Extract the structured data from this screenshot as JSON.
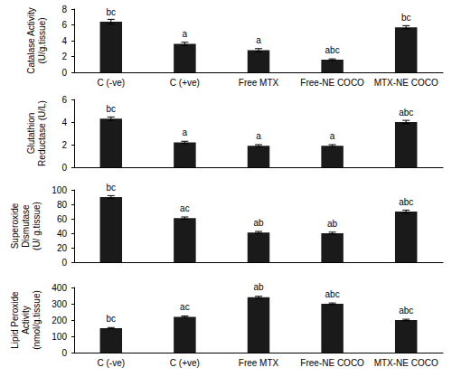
{
  "chart_data": [
    {
      "type": "bar",
      "y_label": "Catalase Activity\n(U/g.tissue)",
      "categories": [
        "C (-ve)",
        "C (+ve)",
        "Free MTX",
        "Free-NE COCO",
        "MTX-NE COCO"
      ],
      "values": [
        6.4,
        3.6,
        2.8,
        1.6,
        5.7
      ],
      "errors": [
        0.3,
        0.2,
        0.2,
        0.1,
        0.2
      ],
      "annotations": [
        "bc",
        "a",
        "a",
        "abc",
        "bc"
      ],
      "color": "#1a1a1a",
      "ylim": [
        0,
        8
      ],
      "yticks": [
        0,
        2,
        4,
        6,
        8
      ],
      "grid": false
    },
    {
      "type": "bar",
      "y_label": "Glutathion\nReductase (U/L)",
      "categories": [
        "C (-ve)",
        "C (+ve)",
        "Free MTX",
        "Free-NE COCO",
        "MTX-NE COCO"
      ],
      "values": [
        4.3,
        2.2,
        1.9,
        1.9,
        4.0
      ],
      "errors": [
        0.15,
        0.1,
        0.1,
        0.1,
        0.15
      ],
      "annotations": [
        "bc",
        "a",
        "a",
        "a",
        "abc"
      ],
      "color": "#1a1a1a",
      "ylim": [
        0,
        6
      ],
      "yticks": [
        0,
        2,
        4,
        6
      ],
      "grid": false,
      "tick_labels": "y"
    },
    {
      "type": "bar",
      "y_label": "Superoxide\nDismutase\n(U/ g.tissue)",
      "categories": [
        "C (-ve)",
        "C (+ve)",
        "Free MTX",
        "Free-NE COCO",
        "MTX-NE COCO"
      ],
      "values": [
        90,
        61,
        41,
        40,
        70
      ],
      "errors": [
        2,
        1.5,
        1.5,
        1.5,
        2
      ],
      "annotations": [
        "bc",
        "ac",
        "ab",
        "ab",
        "abc"
      ],
      "color": "#1a1a1a",
      "ylim": [
        0,
        100
      ],
      "yticks": [
        0,
        20,
        40,
        60,
        80,
        100
      ],
      "grid": false,
      "tick_labels": "y"
    },
    {
      "type": "bar",
      "y_label": "Lipid Peroxide\nActivity\n(nmol/g.tissue)",
      "categories": [
        "C (-ve)",
        "C (+ve)",
        "Free MTX",
        "Free-NE COCO",
        "MTX-NE COCO"
      ],
      "values": [
        150,
        220,
        340,
        300,
        200
      ],
      "errors": [
        4,
        5,
        6,
        5,
        5
      ],
      "annotations": [
        "bc",
        "ac",
        "ab",
        "abc",
        "abc"
      ],
      "color": "#1a1a1a",
      "ylim": [
        0,
        400
      ],
      "yticks": [
        0,
        100,
        200,
        300,
        400
      ],
      "grid": false
    }
  ]
}
